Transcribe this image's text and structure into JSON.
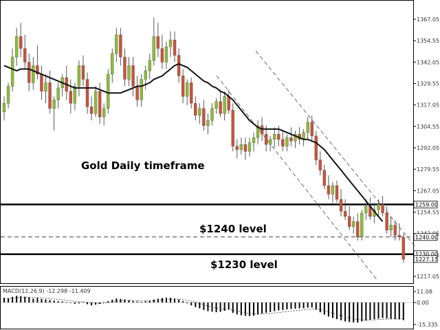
{
  "annotations": {
    "title": "Gold Daily timeframe",
    "level_1240": "$1240 level",
    "level_1230": "$1230 level"
  },
  "chart_data": [
    {
      "type": "candlestick",
      "title": "Gold Daily timeframe",
      "ylim": [
        1208,
        1373
      ],
      "y_ticks": [
        "1367.05",
        "1354.55",
        "1342.05",
        "1329.55",
        "1317.05",
        "1304.55",
        "1292.05",
        "1279.55",
        "1267.05",
        "1254.55",
        "1242.05",
        "1229.55",
        "1217.05"
      ],
      "price_labels": [
        "1259.00",
        "1240.00",
        "1230.00",
        "1227.15"
      ],
      "colors": {
        "up": "#8fbc3a",
        "down": "#c9533a",
        "wick": "#555555",
        "ma": "#111111",
        "level": "#000000",
        "channel": "#444444"
      },
      "candles": [
        [
          1313,
          1322,
          1308,
          1318
        ],
        [
          1318,
          1330,
          1315,
          1328
        ],
        [
          1328,
          1350,
          1325,
          1345
        ],
        [
          1345,
          1362,
          1340,
          1357
        ],
        [
          1357,
          1365,
          1345,
          1350
        ],
        [
          1350,
          1358,
          1338,
          1342
        ],
        [
          1342,
          1347,
          1325,
          1330
        ],
        [
          1330,
          1345,
          1326,
          1340
        ],
        [
          1340,
          1352,
          1332,
          1335
        ],
        [
          1335,
          1340,
          1320,
          1325
        ],
        [
          1325,
          1335,
          1318,
          1330
        ],
        [
          1330,
          1337,
          1312,
          1315
        ],
        [
          1315,
          1322,
          1302,
          1320
        ],
        [
          1320,
          1330,
          1315,
          1327
        ],
        [
          1327,
          1335,
          1322,
          1333
        ],
        [
          1333,
          1340,
          1320,
          1325
        ],
        [
          1325,
          1332,
          1312,
          1318
        ],
        [
          1318,
          1330,
          1314,
          1328
        ],
        [
          1328,
          1343,
          1322,
          1340
        ],
        [
          1340,
          1346,
          1328,
          1332
        ],
        [
          1332,
          1336,
          1312,
          1316
        ],
        [
          1316,
          1322,
          1308,
          1312
        ],
        [
          1312,
          1328,
          1310,
          1325
        ],
        [
          1325,
          1330,
          1306,
          1310
        ],
        [
          1310,
          1318,
          1305,
          1315
        ],
        [
          1315,
          1338,
          1312,
          1335
        ],
        [
          1335,
          1350,
          1330,
          1347
        ],
        [
          1347,
          1362,
          1342,
          1358
        ],
        [
          1358,
          1362,
          1340,
          1345
        ],
        [
          1345,
          1350,
          1328,
          1332
        ],
        [
          1332,
          1345,
          1328,
          1340
        ],
        [
          1340,
          1345,
          1322,
          1328
        ],
        [
          1328,
          1334,
          1316,
          1320
        ],
        [
          1320,
          1335,
          1316,
          1332
        ],
        [
          1332,
          1340,
          1326,
          1337
        ],
        [
          1337,
          1347,
          1332,
          1343
        ],
        [
          1343,
          1368,
          1340,
          1357
        ],
        [
          1357,
          1365,
          1345,
          1350
        ],
        [
          1350,
          1358,
          1338,
          1342
        ],
        [
          1342,
          1354,
          1338,
          1351
        ],
        [
          1351,
          1360,
          1345,
          1355
        ],
        [
          1355,
          1360,
          1342,
          1346
        ],
        [
          1346,
          1350,
          1330,
          1334
        ],
        [
          1334,
          1338,
          1318,
          1322
        ],
        [
          1322,
          1332,
          1317,
          1330
        ],
        [
          1330,
          1333,
          1315,
          1318
        ],
        [
          1318,
          1322,
          1308,
          1311
        ],
        [
          1311,
          1318,
          1306,
          1315
        ],
        [
          1315,
          1320,
          1302,
          1305
        ],
        [
          1305,
          1312,
          1300,
          1308
        ],
        [
          1308,
          1318,
          1305,
          1315
        ],
        [
          1315,
          1321,
          1312,
          1319
        ],
        [
          1319,
          1326,
          1310,
          1312
        ],
        [
          1312,
          1325,
          1308,
          1322
        ],
        [
          1322,
          1326,
          1312,
          1314
        ],
        [
          1314,
          1318,
          1290,
          1293
        ],
        [
          1293,
          1297,
          1286,
          1291
        ],
        [
          1291,
          1298,
          1288,
          1294
        ],
        [
          1294,
          1298,
          1285,
          1290
        ],
        [
          1290,
          1298,
          1287,
          1295
        ],
        [
          1295,
          1301,
          1290,
          1298
        ],
        [
          1298,
          1308,
          1294,
          1305
        ],
        [
          1305,
          1310,
          1296,
          1300
        ],
        [
          1300,
          1305,
          1290,
          1294
        ],
        [
          1294,
          1299,
          1290,
          1297
        ],
        [
          1297,
          1304,
          1292,
          1300
        ],
        [
          1300,
          1305,
          1293,
          1297
        ],
        [
          1297,
          1302,
          1290,
          1293
        ],
        [
          1293,
          1300,
          1290,
          1298
        ],
        [
          1298,
          1304,
          1293,
          1296
        ],
        [
          1296,
          1302,
          1292,
          1300
        ],
        [
          1300,
          1304,
          1294,
          1297
        ],
        [
          1297,
          1303,
          1293,
          1301
        ],
        [
          1301,
          1310,
          1297,
          1307
        ],
        [
          1307,
          1311,
          1296,
          1299
        ],
        [
          1299,
          1302,
          1282,
          1285
        ],
        [
          1285,
          1290,
          1276,
          1279
        ],
        [
          1279,
          1282,
          1268,
          1270
        ],
        [
          1270,
          1276,
          1262,
          1265
        ],
        [
          1265,
          1272,
          1260,
          1270
        ],
        [
          1270,
          1273,
          1260,
          1262
        ],
        [
          1262,
          1268,
          1252,
          1255
        ],
        [
          1255,
          1262,
          1250,
          1252
        ],
        [
          1252,
          1258,
          1244,
          1246
        ],
        [
          1246,
          1252,
          1242,
          1249
        ],
        [
          1249,
          1254,
          1238,
          1240
        ],
        [
          1240,
          1256,
          1238,
          1254
        ],
        [
          1254,
          1262,
          1250,
          1258
        ],
        [
          1258,
          1263,
          1250,
          1252
        ],
        [
          1252,
          1260,
          1248,
          1256
        ],
        [
          1256,
          1262,
          1252,
          1259
        ],
        [
          1259,
          1264,
          1252,
          1254
        ],
        [
          1254,
          1258,
          1242,
          1244
        ],
        [
          1244,
          1252,
          1240,
          1247
        ],
        [
          1247,
          1250,
          1238,
          1241
        ],
        [
          1241,
          1248,
          1238,
          1240
        ],
        [
          1240,
          1242,
          1225,
          1227
        ]
      ],
      "ma": [
        1340,
        1339,
        1338,
        1337,
        1338,
        1338,
        1338,
        1337,
        1336,
        1335,
        1334,
        1333,
        1332,
        1331,
        1330,
        1329,
        1328,
        1327,
        1327,
        1327,
        1327,
        1327,
        1327,
        1326,
        1325,
        1324,
        1324,
        1324,
        1324,
        1325,
        1326,
        1327,
        1328,
        1328,
        1329,
        1330,
        1332,
        1333,
        1334,
        1336,
        1338,
        1340,
        1341,
        1340,
        1339,
        1337,
        1335,
        1333,
        1331,
        1330,
        1328,
        1327,
        1325,
        1324,
        1322,
        1320,
        1317,
        1314,
        1311,
        1308,
        1306,
        1304,
        1303,
        1303,
        1303,
        1303,
        1303,
        1302,
        1301,
        1300,
        1299,
        1298,
        1297,
        1297,
        1296,
        1295,
        1293,
        1291,
        1288,
        1285,
        1282,
        1279,
        1276,
        1273,
        1270,
        1267,
        1264,
        1261,
        1258,
        1255,
        1252,
        1249
      ],
      "levels": [
        1259,
        1240,
        1230
      ],
      "level_styles": [
        "solid",
        "dashed",
        "solid"
      ]
    },
    {
      "type": "bar",
      "title": "MACD(12,26,9) -12.298 -11.409",
      "macd_label": "MACD(12,26,9) -12.298 -11.409",
      "ylim": [
        -15.335,
        11.08
      ],
      "y_ticks": [
        "11.08",
        "0.00",
        "-15.335"
      ],
      "macd_values": [
        4.2,
        3.8,
        5.1,
        6.0,
        5.8,
        5.2,
        4.9,
        3.5,
        4.1,
        3.2,
        2.8,
        2.2,
        1.6,
        1.2,
        1.0,
        0.5,
        -0.3,
        -0.9,
        -0.6,
        -0.2,
        -1.2,
        -2.0,
        -1.5,
        -1.0,
        0.3,
        1.2,
        2.5,
        3.6,
        3.2,
        2.8,
        2.1,
        1.4,
        0.9,
        0.6,
        1.1,
        1.8,
        2.6,
        3.4,
        4.0,
        4.3,
        4.1,
        3.6,
        2.6,
        1.2,
        -0.5,
        -2.0,
        -3.2,
        -4.1,
        -5.2,
        -6.0,
        -6.4,
        -6.8,
        -6.5,
        -5.8,
        -5.0,
        -7.2,
        -8.3,
        -8.9,
        -9.3,
        -9.5,
        -9.2,
        -8.4,
        -7.6,
        -7.1,
        -6.6,
        -6.0,
        -5.5,
        -5.2,
        -4.8,
        -4.5,
        -4.3,
        -4.1,
        -4.0,
        -3.6,
        -3.5,
        -5.0,
        -6.8,
        -8.5,
        -9.8,
        -10.8,
        -11.6,
        -12.4,
        -13.2,
        -13.6,
        -13.9,
        -14.0,
        -13.2,
        -12.6,
        -12.0,
        -11.6,
        -11.2,
        -10.8,
        -11.1,
        -11.4,
        -11.6,
        -11.8,
        -12.3
      ],
      "signal": [
        3.5,
        3.6,
        3.9,
        4.3,
        4.6,
        4.7,
        4.8,
        4.6,
        4.5,
        4.2,
        3.9,
        3.6,
        3.2,
        2.8,
        2.5,
        2.1,
        1.6,
        1.1,
        0.8,
        0.6,
        0.2,
        -0.2,
        -0.5,
        -0.6,
        -0.4,
        -0.1,
        0.5,
        1.1,
        1.6,
        1.9,
        2.0,
        1.9,
        1.7,
        1.5,
        1.4,
        1.5,
        1.7,
        2.0,
        2.4,
        2.8,
        3.0,
        3.1,
        3.0,
        2.6,
        2.0,
        1.2,
        0.3,
        -0.6,
        -1.5,
        -2.4,
        -3.2,
        -3.9,
        -4.4,
        -4.7,
        -4.8,
        -5.3,
        -5.9,
        -6.5,
        -7.1,
        -7.6,
        -7.9,
        -8.0,
        -8.0,
        -7.8,
        -7.6,
        -7.3,
        -7.0,
        -6.6,
        -6.3,
        -6.0,
        -5.7,
        -5.4,
        -5.1,
        -4.8,
        -4.6,
        -4.7,
        -5.1,
        -5.8,
        -6.6,
        -7.4,
        -8.3,
        -9.1,
        -9.9,
        -10.6,
        -11.3,
        -11.8,
        -12.1,
        -12.2,
        -12.2,
        -12.1,
        -11.9,
        -11.7,
        -11.6,
        -11.5,
        -11.5,
        -11.4,
        -11.4
      ]
    }
  ]
}
